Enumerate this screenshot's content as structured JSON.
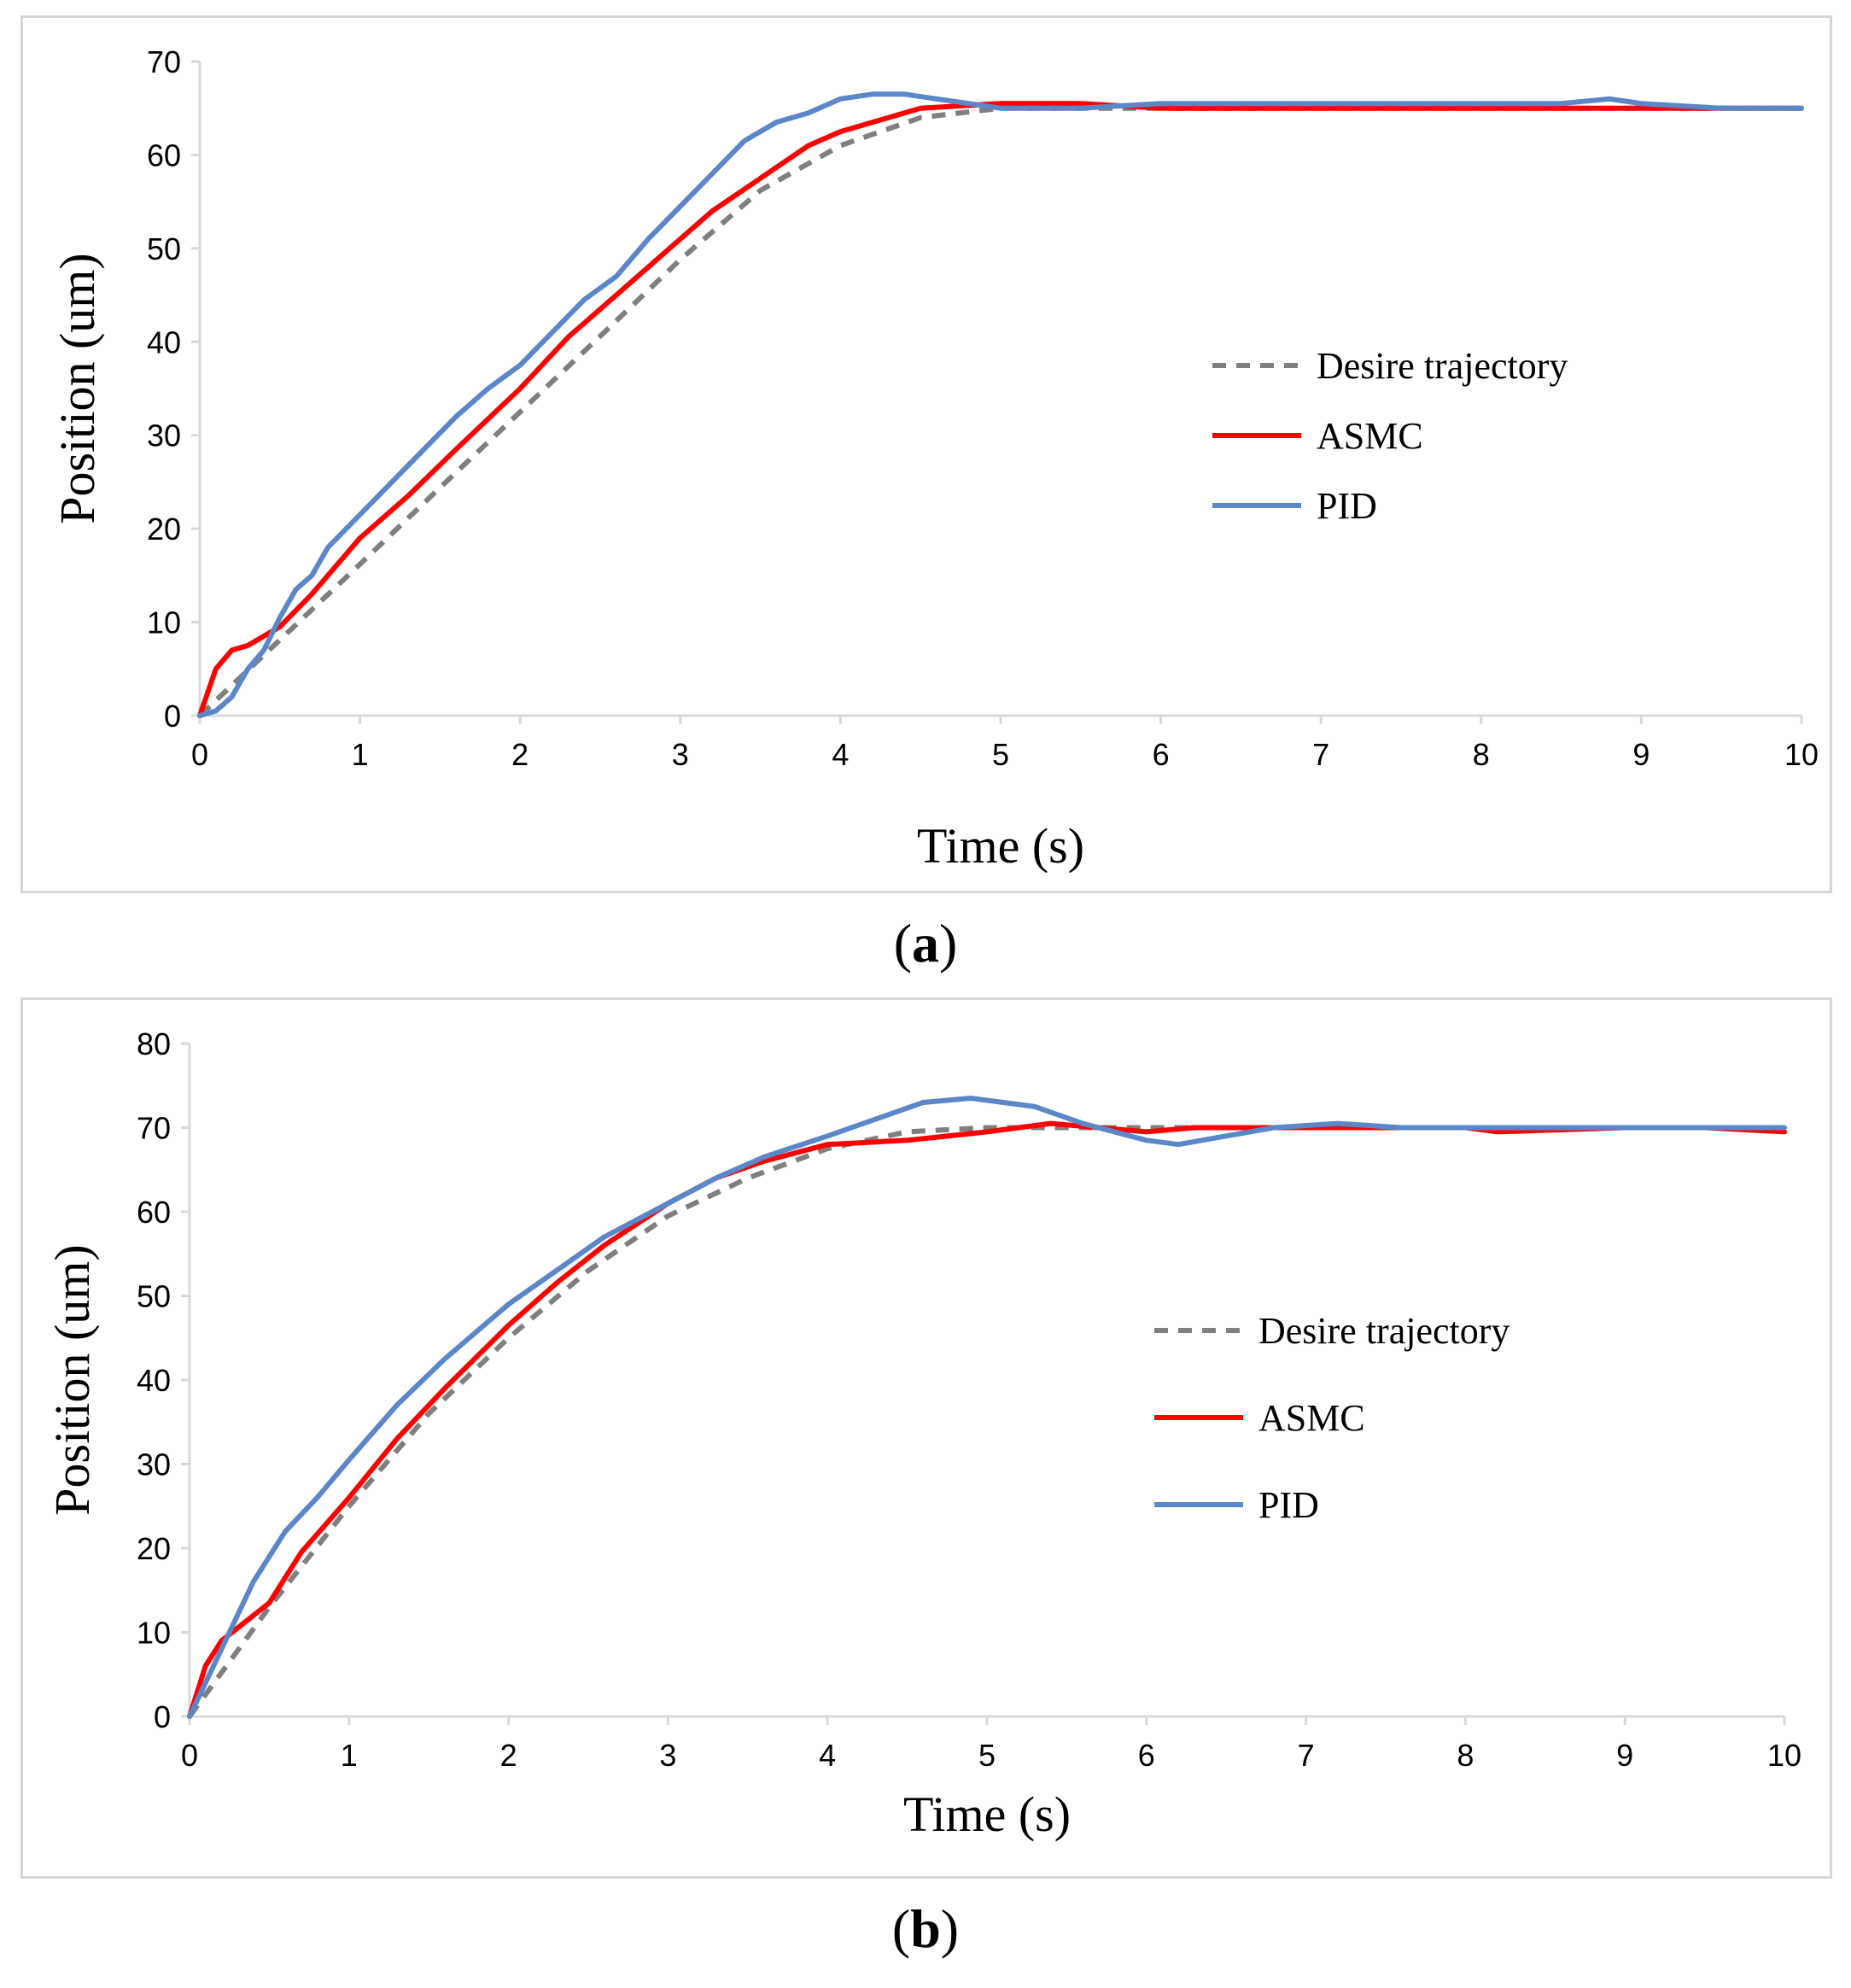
{
  "colors": {
    "desired": "#7f7f7f",
    "asmc": "#ff0000",
    "pid": "#5b87c8",
    "axis": "#d9d9d9"
  },
  "chart_data": [
    {
      "type": "line",
      "caption_letter": "a",
      "xlabel": "Time (s)",
      "ylabel": "Position (um)",
      "xlim": [
        0,
        10
      ],
      "ylim": [
        0,
        70
      ],
      "xticks": [
        "0",
        "1",
        "2",
        "3",
        "4",
        "5",
        "6",
        "7",
        "8",
        "9",
        "10"
      ],
      "yticks": [
        "0",
        "10",
        "20",
        "30",
        "40",
        "50",
        "60",
        "70"
      ],
      "legend_position": "center-right",
      "series": [
        {
          "name": "Desire trajectory",
          "style": "dashed",
          "color": "#7f7f7f",
          "x": [
            0,
            0.5,
            1,
            1.5,
            2,
            2.5,
            3,
            3.5,
            4,
            4.5,
            5,
            6,
            7,
            8,
            9,
            10
          ],
          "y": [
            0,
            8.1,
            16.2,
            24.4,
            32.5,
            40.6,
            48.8,
            56.2,
            61,
            64,
            65,
            65,
            65,
            65,
            65,
            65
          ]
        },
        {
          "name": "ASMC",
          "style": "solid",
          "color": "#ff0000",
          "x": [
            0,
            0.1,
            0.2,
            0.3,
            0.5,
            0.7,
            1,
            1.3,
            1.6,
            2,
            2.3,
            2.6,
            3,
            3.2,
            3.5,
            3.8,
            4,
            4.3,
            4.5,
            5,
            5.5,
            6,
            6.5,
            7,
            7.5,
            8,
            8.5,
            9,
            9.5,
            10
          ],
          "y": [
            0,
            5,
            7,
            7.5,
            9.5,
            13,
            19,
            23.5,
            28.5,
            35,
            40.5,
            45,
            51,
            54,
            57.5,
            61,
            62.5,
            64,
            65,
            65.5,
            65.5,
            65,
            65,
            65,
            65,
            65,
            65,
            65,
            65,
            65
          ]
        },
        {
          "name": "PID",
          "style": "solid",
          "color": "#5b87c8",
          "x": [
            0,
            0.1,
            0.2,
            0.3,
            0.4,
            0.5,
            0.6,
            0.7,
            0.8,
            1,
            1.2,
            1.4,
            1.6,
            1.8,
            2,
            2.2,
            2.4,
            2.6,
            2.8,
            3,
            3.2,
            3.4,
            3.6,
            3.8,
            4,
            4.2,
            4.4,
            4.6,
            4.8,
            5,
            5.5,
            6,
            6.5,
            7,
            7.5,
            8,
            8.5,
            8.8,
            9,
            9.5,
            10
          ],
          "y": [
            0,
            0.5,
            2,
            5,
            7,
            10.5,
            13.5,
            15,
            18,
            21.5,
            25,
            28.5,
            32,
            35,
            37.5,
            41,
            44.5,
            47,
            51,
            54.5,
            58,
            61.5,
            63.5,
            64.5,
            66,
            66.5,
            66.5,
            66,
            65.5,
            65,
            65,
            65.5,
            65.5,
            65.5,
            65.5,
            65.5,
            65.5,
            66,
            65.5,
            65,
            65
          ]
        }
      ]
    },
    {
      "type": "line",
      "caption_letter": "b",
      "xlabel": "Time (s)",
      "ylabel": "Position (um)",
      "xlim": [
        0,
        10
      ],
      "ylim": [
        0,
        80
      ],
      "xticks": [
        "0",
        "1",
        "2",
        "3",
        "4",
        "5",
        "6",
        "7",
        "8",
        "9",
        "10"
      ],
      "yticks": [
        "0",
        "10",
        "20",
        "30",
        "40",
        "50",
        "60",
        "70",
        "80"
      ],
      "legend_position": "center-right",
      "series": [
        {
          "name": "Desire trajectory",
          "style": "dashed",
          "color": "#7f7f7f",
          "x": [
            0,
            0.5,
            1,
            1.5,
            2,
            2.5,
            3,
            3.5,
            4,
            4.5,
            5,
            6,
            7,
            8,
            9,
            10
          ],
          "y": [
            0,
            13,
            25,
            36,
            45,
            53,
            59.5,
            64,
            67.5,
            69.5,
            70,
            70,
            70,
            70,
            70,
            70
          ]
        },
        {
          "name": "ASMC",
          "style": "solid",
          "color": "#ff0000",
          "x": [
            0,
            0.1,
            0.2,
            0.3,
            0.5,
            0.7,
            1,
            1.3,
            1.6,
            2,
            2.3,
            2.6,
            3,
            3.3,
            3.6,
            4,
            4.5,
            5,
            5.4,
            6,
            6.3,
            7,
            8,
            8.2,
            9,
            9.5,
            10
          ],
          "y": [
            0,
            6,
            9,
            10.5,
            13.5,
            19.5,
            26,
            33,
            39,
            46.5,
            51.5,
            56,
            61,
            64,
            66,
            68,
            68.5,
            69.5,
            70.5,
            69.5,
            70,
            70,
            70,
            69.5,
            70,
            70,
            69.5
          ]
        },
        {
          "name": "PID",
          "style": "solid",
          "color": "#5b87c8",
          "x": [
            0,
            0.2,
            0.4,
            0.6,
            0.8,
            1,
            1.3,
            1.6,
            2,
            2.3,
            2.6,
            3,
            3.3,
            3.6,
            4,
            4.3,
            4.6,
            4.9,
            5.3,
            5.6,
            6,
            6.2,
            6.5,
            6.8,
            7.2,
            7.6,
            8,
            8.5,
            9,
            9.5,
            10
          ],
          "y": [
            0,
            8,
            16,
            22,
            26,
            30.5,
            37,
            42.5,
            49,
            53,
            57,
            61,
            64,
            66.5,
            69,
            71,
            73,
            73.5,
            72.5,
            70.5,
            68.5,
            68,
            69,
            70,
            70.5,
            70,
            70,
            70,
            70,
            70,
            70
          ]
        }
      ]
    }
  ]
}
